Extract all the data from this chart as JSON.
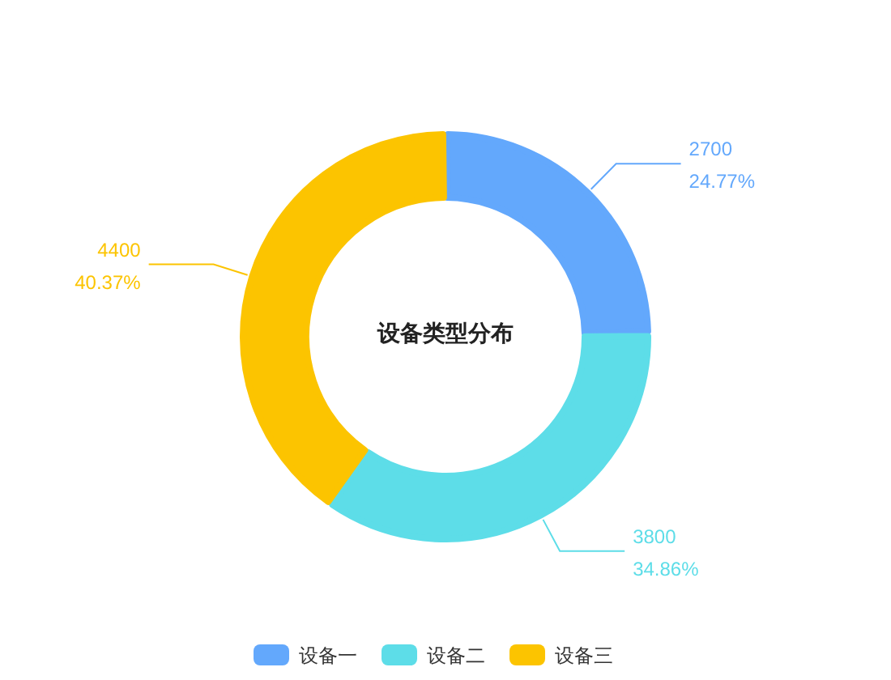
{
  "chart_data": {
    "type": "donut",
    "title": "设备类型分布",
    "categories": [
      "设备一",
      "设备二",
      "设备三"
    ],
    "values": [
      2700,
      3800,
      4400
    ],
    "colors": [
      "#63a8fc",
      "#5ddde8",
      "#fcc400"
    ],
    "value_labels": [
      "2700\n24.77%",
      "3800\n34.86%",
      "4400\n40.37%"
    ],
    "legend": "bottom"
  }
}
